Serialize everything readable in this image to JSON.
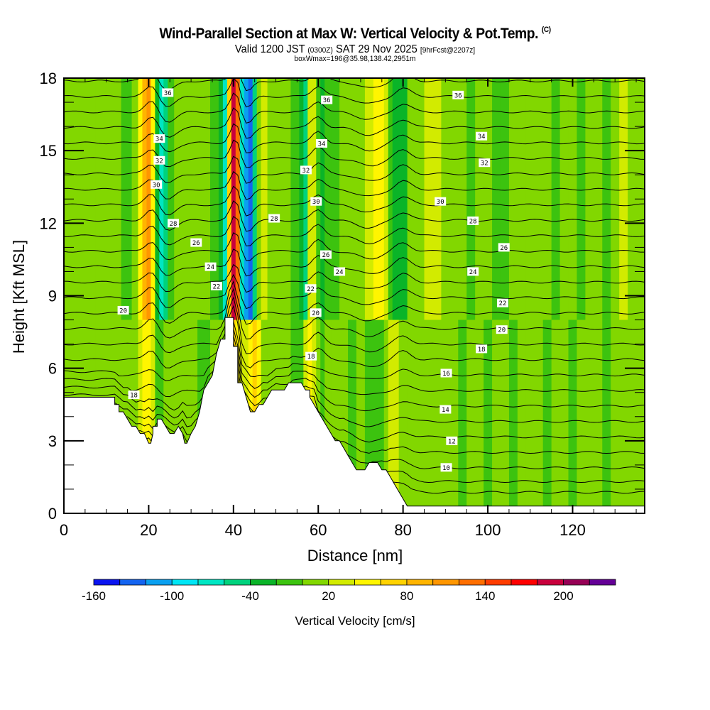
{
  "header": {
    "title": "Wind-Parallel Section at Max W: Vertical Velocity & Pot.Temp.",
    "copyright": "(C)",
    "valid_prefix": "Valid 1200 JST",
    "valid_utc": "(0300Z)",
    "valid_date": "SAT 29 Nov 2025",
    "forecast": "[9hrFcst@2207z]",
    "box_info": "boxWmax=196@35.98,138.42,2951m"
  },
  "chart_data": {
    "type": "heatmap",
    "title": "Wind-Parallel Section at Max W: Vertical Velocity & Pot.Temp.",
    "xlabel": "Distance [nm]",
    "ylabel": "Height [Kft MSL]",
    "xlim": [
      0,
      137
    ],
    "ylim": [
      0,
      18
    ],
    "x_ticks": [
      0,
      20,
      40,
      60,
      80,
      100,
      120
    ],
    "y_ticks": [
      0,
      3,
      6,
      9,
      12,
      15,
      18
    ],
    "colorbar": {
      "label": "Vertical Velocity [cm/s]",
      "levels": [
        -160,
        -140,
        -120,
        -100,
        -80,
        -60,
        -40,
        -20,
        0,
        20,
        40,
        60,
        80,
        100,
        120,
        140,
        160,
        180,
        200,
        220,
        240
      ],
      "tick_labels": [
        "-160",
        "-100",
        "-40",
        "20",
        "80",
        "140",
        "200"
      ],
      "tick_values": [
        -160,
        -100,
        -40,
        20,
        80,
        140,
        200
      ],
      "colors": [
        "#0a14f0",
        "#1464f0",
        "#0aa0f0",
        "#00e6f5",
        "#00e6c3",
        "#00d27d",
        "#0ab428",
        "#3cc30f",
        "#82d700",
        "#d2eb00",
        "#fff500",
        "#ffd200",
        "#ffb400",
        "#ff9600",
        "#ff6e00",
        "#ff3c00",
        "#ff0000",
        "#c8003c",
        "#960055",
        "#640096"
      ]
    },
    "terrain_kft": {
      "x_nm": [
        0,
        12,
        12,
        13,
        13,
        14,
        15,
        16,
        17,
        18,
        19,
        20,
        20.5,
        21,
        21,
        22,
        22,
        23,
        24,
        25,
        26,
        27,
        28,
        28.5,
        29,
        30,
        31,
        32,
        33,
        34,
        35,
        36,
        37,
        38,
        38,
        40,
        40,
        41,
        41,
        42,
        43,
        44,
        45,
        46,
        47,
        48,
        49,
        50,
        51,
        52,
        53,
        54,
        55,
        56,
        57,
        58,
        58,
        59,
        60,
        61,
        62,
        63,
        64,
        65,
        66,
        67,
        68,
        69,
        70,
        71,
        72,
        73,
        74,
        75,
        76,
        77,
        78,
        79,
        80,
        81,
        82,
        83,
        84,
        85,
        137
      ],
      "h": [
        4.8,
        4.8,
        4.5,
        4.5,
        4.2,
        4.2,
        3.9,
        3.6,
        3.6,
        3.3,
        3.3,
        2.9,
        2.9,
        3.3,
        3.6,
        3.6,
        3.9,
        3.9,
        3.6,
        3.3,
        3.3,
        3.6,
        3.3,
        2.9,
        2.9,
        3.3,
        3.6,
        4.2,
        5.1,
        5.4,
        5.7,
        6.6,
        7.2,
        7.2,
        8.1,
        8.1,
        6.9,
        6.9,
        5.4,
        5.4,
        4.8,
        4.2,
        4.2,
        4.5,
        4.5,
        4.8,
        5.1,
        5.1,
        5.1,
        5.1,
        5.4,
        5.4,
        5.4,
        5.4,
        5.1,
        5.1,
        4.8,
        4.5,
        4.2,
        3.9,
        3.6,
        3.3,
        3.0,
        3.0,
        2.7,
        2.4,
        2.1,
        1.8,
        1.8,
        1.8,
        2.1,
        2.1,
        2.1,
        1.8,
        1.8,
        1.5,
        1.2,
        0.9,
        0.6,
        0.3,
        0.3,
        0.3,
        0.3,
        0.3,
        0.3
      ]
    },
    "vertical_velocity_columns": {
      "x_nm": [
        0,
        3,
        6,
        9,
        12,
        15,
        17,
        18,
        19,
        20,
        21,
        22,
        23,
        24,
        25,
        27,
        30,
        33,
        36,
        37,
        38,
        39,
        40,
        41,
        42,
        43,
        44,
        45,
        46,
        47,
        49,
        52,
        55,
        56,
        57,
        58,
        59,
        60,
        61,
        62,
        64,
        66,
        68,
        70,
        72,
        74,
        75,
        76,
        77,
        78,
        80,
        82,
        84,
        86,
        88,
        90,
        92,
        94,
        96,
        98,
        100,
        102,
        104,
        106,
        108,
        110,
        112,
        114,
        116,
        118,
        120,
        122,
        124,
        126,
        128,
        130,
        132,
        134,
        137
      ],
      "w_upper_cms": [
        0,
        10,
        0,
        0,
        10,
        -10,
        10,
        40,
        80,
        110,
        40,
        -30,
        -70,
        -60,
        -20,
        0,
        10,
        5,
        -10,
        -40,
        -80,
        60,
        180,
        120,
        -70,
        -120,
        -140,
        -60,
        10,
        30,
        10,
        0,
        -10,
        -40,
        -50,
        20,
        30,
        -10,
        -30,
        -10,
        -10,
        0,
        10,
        0,
        20,
        40,
        50,
        30,
        -10,
        -40,
        -30,
        0,
        10,
        30,
        30,
        10,
        5,
        0,
        -10,
        10,
        10,
        -10,
        -10,
        0,
        10,
        0,
        5,
        0,
        -10,
        0,
        10,
        -10,
        0,
        10,
        -10,
        0,
        30,
        10,
        0
      ],
      "w_lower_cms": [
        10,
        10,
        10,
        5,
        10,
        0,
        10,
        20,
        40,
        50,
        20,
        -10,
        -10,
        0,
        10,
        10,
        10,
        -10,
        0,
        10,
        10,
        30,
        60,
        40,
        30,
        20,
        50,
        60,
        40,
        10,
        0,
        0,
        -10,
        -10,
        30,
        40,
        30,
        0,
        -10,
        0,
        0,
        10,
        -10,
        0,
        -10,
        -20,
        -10,
        10,
        30,
        20,
        10,
        10,
        0,
        10,
        10,
        5,
        0,
        -10,
        5,
        10,
        -10,
        0,
        10,
        -10,
        5,
        10,
        0,
        -10,
        10,
        0,
        -10,
        5,
        10,
        0,
        -10,
        10,
        0,
        0,
        0
      ]
    },
    "isentropes": {
      "labels": [
        "10",
        "12",
        "14",
        "16",
        "18",
        "20",
        "22",
        "24",
        "26",
        "28",
        "30",
        "32",
        "34",
        "36"
      ],
      "label_positions_nm_kft": [
        {
          "t": "36",
          "x": 24.5,
          "y": 17.4
        },
        {
          "t": "34",
          "x": 22.5,
          "y": 15.5
        },
        {
          "t": "32",
          "x": 22.5,
          "y": 14.6
        },
        {
          "t": "30",
          "x": 21.8,
          "y": 13.6
        },
        {
          "t": "28",
          "x": 25.8,
          "y": 12.0
        },
        {
          "t": "26",
          "x": 31.2,
          "y": 11.2
        },
        {
          "t": "24",
          "x": 34.6,
          "y": 10.2
        },
        {
          "t": "22",
          "x": 36.0,
          "y": 9.4
        },
        {
          "t": "20",
          "x": 14.0,
          "y": 8.4
        },
        {
          "t": "18",
          "x": 16.5,
          "y": 4.9
        },
        {
          "t": "28",
          "x": 49.6,
          "y": 12.2
        },
        {
          "t": "36",
          "x": 62.0,
          "y": 17.1
        },
        {
          "t": "34",
          "x": 60.8,
          "y": 15.3
        },
        {
          "t": "32",
          "x": 57.1,
          "y": 14.2
        },
        {
          "t": "30",
          "x": 59.5,
          "y": 12.9
        },
        {
          "t": "26",
          "x": 61.8,
          "y": 10.7
        },
        {
          "t": "24",
          "x": 65.0,
          "y": 10.0
        },
        {
          "t": "22",
          "x": 58.2,
          "y": 9.3
        },
        {
          "t": "20",
          "x": 59.4,
          "y": 8.3
        },
        {
          "t": "18",
          "x": 58.3,
          "y": 6.5
        },
        {
          "t": "36",
          "x": 93.0,
          "y": 17.3
        },
        {
          "t": "34",
          "x": 98.5,
          "y": 15.6
        },
        {
          "t": "32",
          "x": 99.2,
          "y": 14.5
        },
        {
          "t": "30",
          "x": 88.8,
          "y": 12.9
        },
        {
          "t": "28",
          "x": 96.5,
          "y": 12.1
        },
        {
          "t": "26",
          "x": 103.8,
          "y": 11.0
        },
        {
          "t": "24",
          "x": 96.5,
          "y": 10.0
        },
        {
          "t": "22",
          "x": 103.5,
          "y": 8.7
        },
        {
          "t": "20",
          "x": 103.3,
          "y": 7.6
        },
        {
          "t": "18",
          "x": 98.5,
          "y": 6.8
        },
        {
          "t": "16",
          "x": 90.2,
          "y": 5.8
        },
        {
          "t": "14",
          "x": 90.0,
          "y": 4.3
        },
        {
          "t": "12",
          "x": 91.5,
          "y": 3.0
        },
        {
          "t": "10",
          "x": 90.2,
          "y": 1.9
        }
      ]
    }
  }
}
